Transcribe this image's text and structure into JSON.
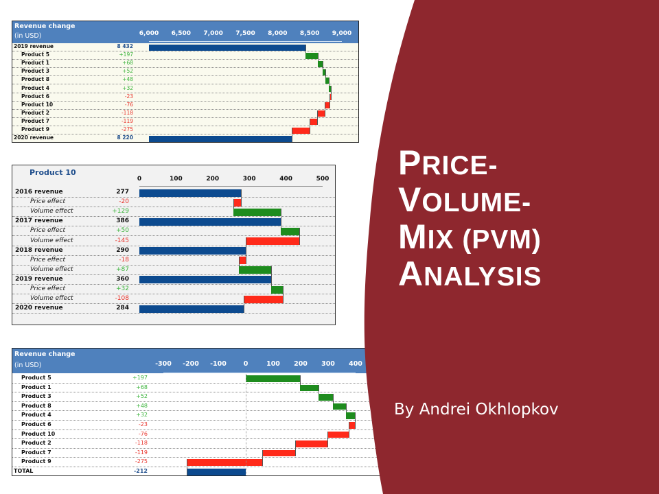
{
  "slide": {
    "title_lines": [
      {
        "cap": "P",
        "rest": "RICE-"
      },
      {
        "cap": "V",
        "rest": "OLUME-"
      },
      {
        "cap": "M",
        "rest": "IX (PVM)"
      },
      {
        "cap": "A",
        "rest": "NALYSIS"
      }
    ],
    "title_full": "Price-Volume-Mix (PVM) Analysis",
    "byline": "By Andrei Okhlopkov",
    "colors": {
      "panel_red": "#8e272e",
      "header_blue": "#4f81bd",
      "bar_blue": "#0c4a8f",
      "bar_green": "#1e8c1e",
      "bar_red": "#ff2a1a"
    }
  },
  "table1": {
    "header_line1": "Revenue change",
    "header_line2": "(in USD)",
    "axis_ticks": [
      "6,000",
      "6,500",
      "7,000",
      "7,500",
      "8,000",
      "8,500",
      "9,000"
    ],
    "rows": [
      {
        "label": "2019 revenue",
        "value": "8 432",
        "kind": "total"
      },
      {
        "label": "Product 5",
        "value": "+197",
        "kind": "pos"
      },
      {
        "label": "Product 1",
        "value": "+68",
        "kind": "pos"
      },
      {
        "label": "Product 3",
        "value": "+52",
        "kind": "pos"
      },
      {
        "label": "Product 8",
        "value": "+48",
        "kind": "pos"
      },
      {
        "label": "Product 4",
        "value": "+32",
        "kind": "pos"
      },
      {
        "label": "Product 6",
        "value": "-23",
        "kind": "neg"
      },
      {
        "label": "Product 10",
        "value": "-76",
        "kind": "neg"
      },
      {
        "label": "Product 2",
        "value": "-118",
        "kind": "neg"
      },
      {
        "label": "Product 7",
        "value": "-119",
        "kind": "neg"
      },
      {
        "label": "Product 9",
        "value": "-275",
        "kind": "neg"
      },
      {
        "label": "2020 revenue",
        "value": "8 220",
        "kind": "total"
      }
    ]
  },
  "table2": {
    "title": "Product 10",
    "axis_ticks": [
      "0",
      "100",
      "200",
      "300",
      "400",
      "500"
    ],
    "rows": [
      {
        "label": "2016 revenue",
        "value": "277",
        "kind": "total"
      },
      {
        "label": "Price effect",
        "value": "-20",
        "kind": "neg"
      },
      {
        "label": "Volume effect",
        "value": "+129",
        "kind": "pos"
      },
      {
        "label": "2017 revenue",
        "value": "386",
        "kind": "total"
      },
      {
        "label": "Price effect",
        "value": "+50",
        "kind": "pos"
      },
      {
        "label": "Volume effect",
        "value": "-145",
        "kind": "neg"
      },
      {
        "label": "2018 revenue",
        "value": "290",
        "kind": "total"
      },
      {
        "label": "Price effect",
        "value": "-18",
        "kind": "neg"
      },
      {
        "label": "Volume effect",
        "value": "+87",
        "kind": "pos"
      },
      {
        "label": "2019 revenue",
        "value": "360",
        "kind": "total"
      },
      {
        "label": "Price effect",
        "value": "+32",
        "kind": "pos"
      },
      {
        "label": "Volume effect",
        "value": "-108",
        "kind": "neg"
      },
      {
        "label": "2020 revenue",
        "value": "284",
        "kind": "total"
      }
    ]
  },
  "table3": {
    "header_line1": "Revenue change",
    "header_line2": "(in USD)",
    "axis_ticks": [
      "-300",
      "-200",
      "-100",
      "0",
      "100",
      "200",
      "300",
      "400"
    ],
    "rows": [
      {
        "label": "Product 5",
        "value": "+197",
        "kind": "pos"
      },
      {
        "label": "Product 1",
        "value": "+68",
        "kind": "pos"
      },
      {
        "label": "Product 3",
        "value": "+52",
        "kind": "pos"
      },
      {
        "label": "Product 8",
        "value": "+48",
        "kind": "pos"
      },
      {
        "label": "Product 4",
        "value": "+32",
        "kind": "pos"
      },
      {
        "label": "Product 6",
        "value": "-23",
        "kind": "neg"
      },
      {
        "label": "Product 10",
        "value": "-76",
        "kind": "neg"
      },
      {
        "label": "Product 2",
        "value": "-118",
        "kind": "neg"
      },
      {
        "label": "Product 7",
        "value": "-119",
        "kind": "neg"
      },
      {
        "label": "Product 9",
        "value": "-275",
        "kind": "neg"
      },
      {
        "label": "TOTAL",
        "value": "-212",
        "kind": "total"
      }
    ]
  },
  "chart_data": [
    {
      "type": "bar",
      "subtype": "waterfall-horizontal",
      "title": "Revenue change (in USD)",
      "categories": [
        "2019 revenue",
        "Product 5",
        "Product 1",
        "Product 3",
        "Product 8",
        "Product 4",
        "Product 6",
        "Product 10",
        "Product 2",
        "Product 7",
        "Product 9",
        "2020 revenue"
      ],
      "values": [
        8432,
        197,
        68,
        52,
        48,
        32,
        -23,
        -76,
        -118,
        -119,
        -275,
        8220
      ],
      "xlim": [
        6000,
        9000
      ],
      "xticks": [
        6000,
        6500,
        7000,
        7500,
        8000,
        8500,
        9000
      ],
      "grid": true,
      "legend": "none"
    },
    {
      "type": "bar",
      "subtype": "waterfall-horizontal",
      "title": "Product 10",
      "categories": [
        "2016 revenue",
        "Price effect",
        "Volume effect",
        "2017 revenue",
        "Price effect",
        "Volume effect",
        "2018 revenue",
        "Price effect",
        "Volume effect",
        "2019 revenue",
        "Price effect",
        "Volume effect",
        "2020 revenue"
      ],
      "values": [
        277,
        -20,
        129,
        386,
        50,
        -145,
        290,
        -18,
        87,
        360,
        32,
        -108,
        284
      ],
      "xlim": [
        0,
        500
      ],
      "xticks": [
        0,
        100,
        200,
        300,
        400,
        500
      ],
      "grid": true,
      "legend": "none"
    },
    {
      "type": "bar",
      "subtype": "waterfall-horizontal",
      "title": "Revenue change (in USD)",
      "categories": [
        "Product 5",
        "Product 1",
        "Product 3",
        "Product 8",
        "Product 4",
        "Product 6",
        "Product 10",
        "Product 2",
        "Product 7",
        "Product 9",
        "TOTAL"
      ],
      "values": [
        197,
        68,
        52,
        48,
        32,
        -23,
        -76,
        -118,
        -119,
        -275,
        -212
      ],
      "xlim": [
        -300,
        400
      ],
      "xticks": [
        -300,
        -200,
        -100,
        0,
        100,
        200,
        300,
        400
      ],
      "grid": true,
      "legend": "none"
    }
  ]
}
